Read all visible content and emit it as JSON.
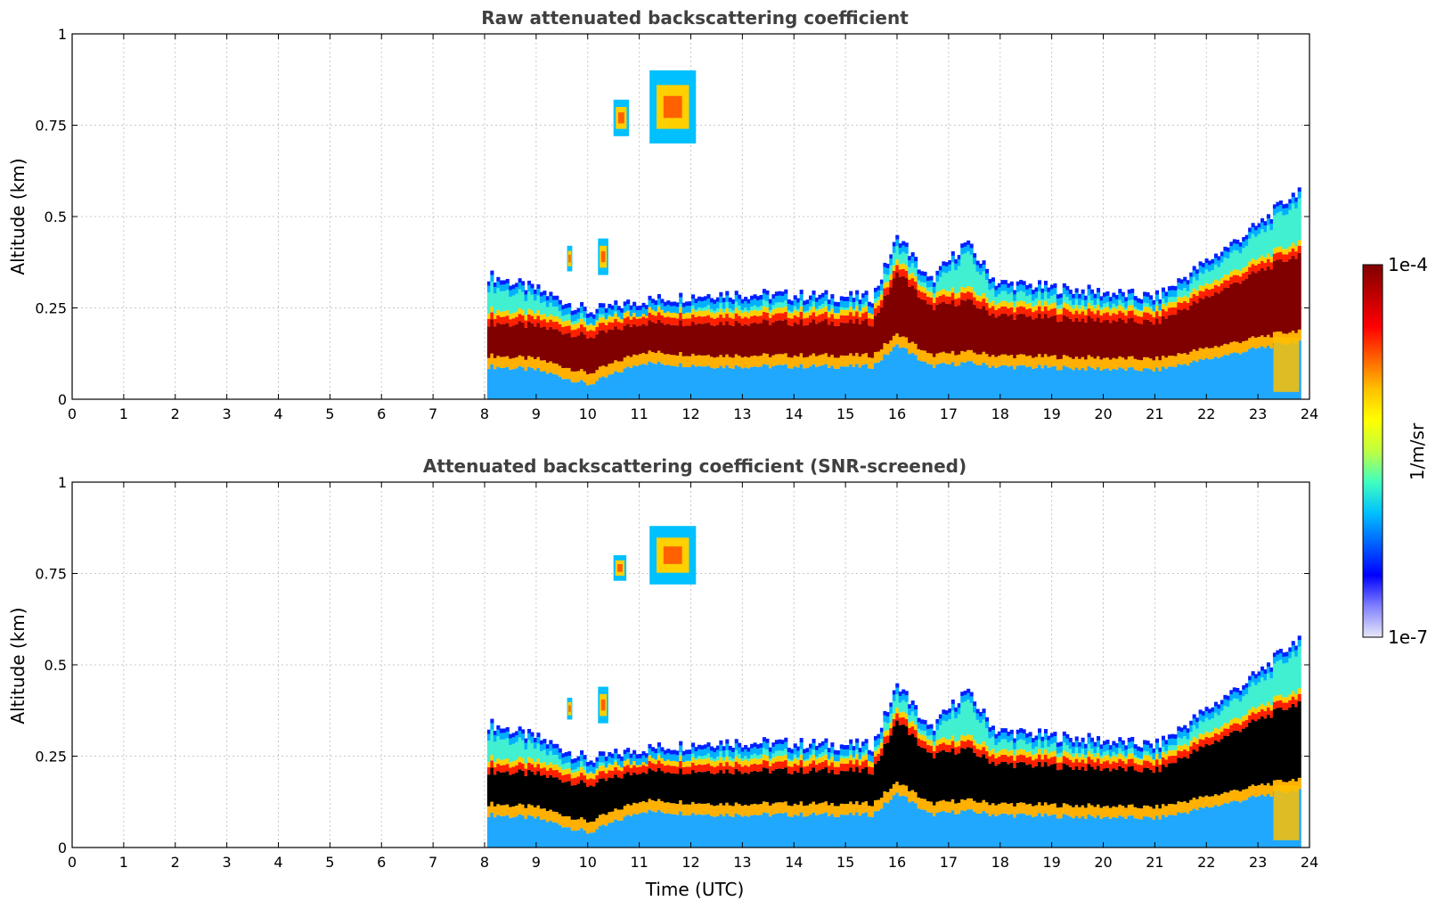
{
  "chart_data": [
    {
      "type": "heatmap",
      "title": "Raw attenuated backscattering coefficient",
      "xlabel": "",
      "ylabel": "Altitude (km)",
      "xlim": [
        0,
        24
      ],
      "ylim": [
        0,
        1
      ],
      "xticks": [
        "0",
        "1",
        "2",
        "3",
        "4",
        "5",
        "6",
        "7",
        "8",
        "9",
        "10",
        "11",
        "12",
        "13",
        "14",
        "15",
        "16",
        "17",
        "18",
        "19",
        "20",
        "21",
        "22",
        "23",
        "24"
      ],
      "yticks": [
        "0",
        "0.25",
        "0.5",
        "0.75",
        "1"
      ],
      "grid": true,
      "screened": false,
      "data_start_hour": 8.05,
      "data_end_hour": 23.8,
      "profile_points": [
        {
          "t": 8.05,
          "top": 0.34,
          "core_lo": 0.12,
          "core_hi": 0.21
        },
        {
          "t": 9.0,
          "top": 0.3,
          "core_lo": 0.11,
          "core_hi": 0.2
        },
        {
          "t": 10.0,
          "top": 0.24,
          "core_lo": 0.07,
          "core_hi": 0.17
        },
        {
          "t": 11.0,
          "top": 0.27,
          "core_lo": 0.13,
          "core_hi": 0.21
        },
        {
          "t": 12.5,
          "top": 0.29,
          "core_lo": 0.12,
          "core_hi": 0.21
        },
        {
          "t": 15.5,
          "top": 0.28,
          "core_lo": 0.12,
          "core_hi": 0.21
        },
        {
          "t": 16.0,
          "top": 0.45,
          "core_lo": 0.18,
          "core_hi": 0.35
        },
        {
          "t": 16.6,
          "top": 0.32,
          "core_lo": 0.12,
          "core_hi": 0.25
        },
        {
          "t": 17.3,
          "top": 0.43,
          "core_lo": 0.13,
          "core_hi": 0.27
        },
        {
          "t": 17.9,
          "top": 0.32,
          "core_lo": 0.12,
          "core_hi": 0.23
        },
        {
          "t": 21.0,
          "top": 0.28,
          "core_lo": 0.11,
          "core_hi": 0.21
        },
        {
          "t": 22.0,
          "top": 0.38,
          "core_lo": 0.14,
          "core_hi": 0.28
        },
        {
          "t": 23.0,
          "top": 0.48,
          "core_lo": 0.17,
          "core_hi": 0.35
        },
        {
          "t": 23.8,
          "top": 0.58,
          "core_lo": 0.19,
          "core_hi": 0.4
        }
      ],
      "cloud_patches": [
        {
          "t0": 11.2,
          "t1": 12.1,
          "z0": 0.7,
          "z1": 0.9
        },
        {
          "t0": 10.5,
          "t1": 10.8,
          "z0": 0.72,
          "z1": 0.82
        },
        {
          "t0": 9.6,
          "t1": 9.7,
          "z0": 0.35,
          "z1": 0.42
        },
        {
          "t0": 10.2,
          "t1": 10.4,
          "z0": 0.34,
          "z1": 0.44
        }
      ]
    },
    {
      "type": "heatmap",
      "title": "Attenuated backscattering coefficient (SNR-screened)",
      "xlabel": "Time (UTC)",
      "ylabel": "Altitude (km)",
      "xlim": [
        0,
        24
      ],
      "ylim": [
        0,
        1
      ],
      "xticks": [
        "0",
        "1",
        "2",
        "3",
        "4",
        "5",
        "6",
        "7",
        "8",
        "9",
        "10",
        "11",
        "12",
        "13",
        "14",
        "15",
        "16",
        "17",
        "18",
        "19",
        "20",
        "21",
        "22",
        "23",
        "24"
      ],
      "yticks": [
        "0",
        "0.25",
        "0.5",
        "0.75",
        "1"
      ],
      "grid": true,
      "screened": true,
      "data_start_hour": 8.05,
      "data_end_hour": 23.8,
      "cloud_patches": [
        {
          "t0": 11.2,
          "t1": 12.1,
          "z0": 0.72,
          "z1": 0.88
        },
        {
          "t0": 10.5,
          "t1": 10.75,
          "z0": 0.73,
          "z1": 0.8
        },
        {
          "t0": 9.6,
          "t1": 9.7,
          "z0": 0.35,
          "z1": 0.41
        },
        {
          "t0": 10.2,
          "t1": 10.4,
          "z0": 0.34,
          "z1": 0.44
        }
      ]
    }
  ],
  "colorbar": {
    "label": "1/m/sr",
    "max_label": "1e-4",
    "min_label": "1e-7",
    "colors": [
      "#e8e8f8",
      "#8080ff",
      "#0000ff",
      "#0060ff",
      "#00c0ff",
      "#40ffc0",
      "#c0ff40",
      "#ffff00",
      "#ffc000",
      "#ff6000",
      "#ff0000",
      "#c00000",
      "#800000"
    ]
  }
}
